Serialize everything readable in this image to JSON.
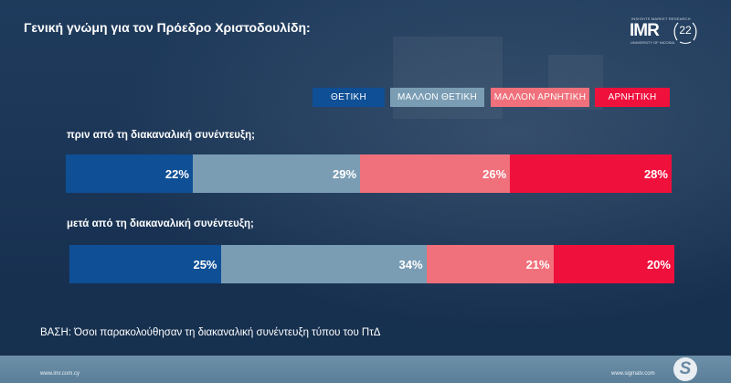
{
  "title": "Γενική γνώμη για τον Πρόεδρο Χριστοδουλίδη:",
  "logo": {
    "small_text": "INSIGHTS MARKET RESEARCH",
    "name": "IMR",
    "sub_text": "UNIVERSITY OF NICOSIA",
    "anniversary": "22"
  },
  "chart_data": {
    "type": "bar",
    "orientation": "horizontal-stacked-100",
    "categories": [
      "πριν από τη διακαναλική συνέντευξη;",
      "μετά από τη διακαναλική συνέντευξη;"
    ],
    "series": [
      {
        "name": "ΘΕΤΙΚΗ",
        "color": "#0e4f96",
        "values": [
          22,
          25
        ],
        "labels": [
          "22%",
          "25%"
        ]
      },
      {
        "name": "ΜΑΛΛΟΝ ΘΕΤΙΚΗ",
        "color": "#7a9db4",
        "values": [
          29,
          34
        ],
        "labels": [
          "29%",
          "34%"
        ]
      },
      {
        "name": "ΜΑΛΛΟΝ ΑΡΝΗΤΙΚΗ",
        "color": "#f0707b",
        "values": [
          26,
          21
        ],
        "labels": [
          "26%",
          "21%"
        ]
      },
      {
        "name": "ΑΡΝΗΤΙΚΗ",
        "color": "#f0103c",
        "values": [
          28,
          20
        ],
        "labels": [
          "28%",
          "20%"
        ]
      }
    ],
    "legend_position": "top-right"
  },
  "base_note": "ΒΑΣΗ: Όσοι παρακολούθησαν τη διακαναλική συνέντευξη τύπου του ΠτΔ",
  "footer": {
    "left_url": "www.imr.com.cy",
    "right_url": "www.sigmatv.com",
    "logo_letter": "S"
  }
}
